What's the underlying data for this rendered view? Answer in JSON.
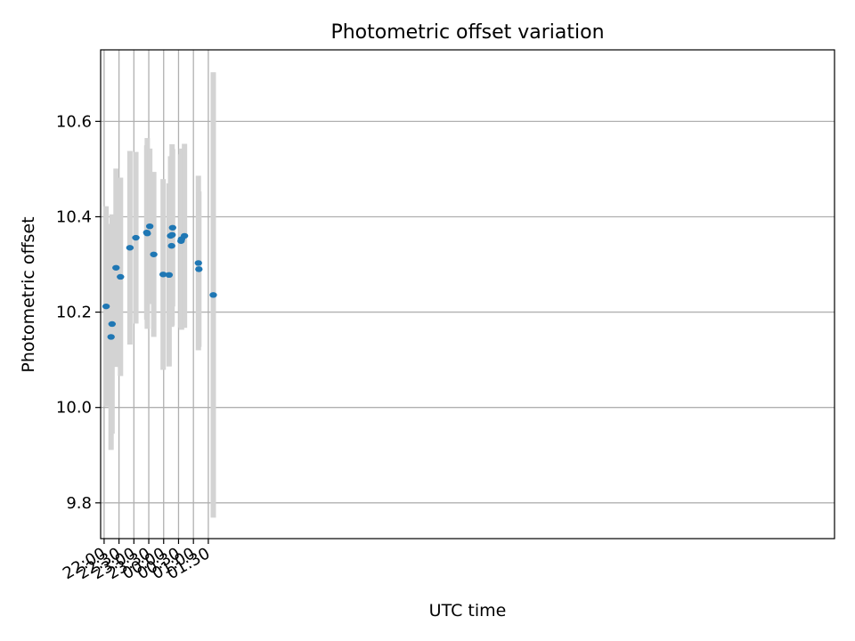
{
  "chart_data": {
    "type": "scatter",
    "title": "Photometric offset variation",
    "xlabel": "UTC time",
    "ylabel": "Photometric offset",
    "grid": true,
    "xlim": [
      "21:53",
      "22:32 +1"
    ],
    "ylim": [
      9.725,
      10.75
    ],
    "xticks": [
      "22:00",
      "22:30",
      "23:00",
      "23:30",
      "00:00",
      "00:30",
      "01:00",
      "01:30"
    ],
    "yticks": [
      "9.8",
      "10.0",
      "10.2",
      "10.4",
      "10.6"
    ],
    "colors": {
      "marker": "#1f77b4",
      "errorbar": "#d3d3d3",
      "grid": "#b0b0b0"
    },
    "points": [
      {
        "t": "22:04",
        "y": 10.212,
        "err": 0.21
      },
      {
        "t": "22:14",
        "y": 10.148,
        "err": 0.237
      },
      {
        "t": "22:16",
        "y": 10.175,
        "err": 0.23
      },
      {
        "t": "22:24",
        "y": 10.293,
        "err": 0.208
      },
      {
        "t": "22:33",
        "y": 10.274,
        "err": 0.208
      },
      {
        "t": "22:52",
        "y": 10.335,
        "err": 0.203
      },
      {
        "t": "23:04",
        "y": 10.356,
        "err": 0.18
      },
      {
        "t": "23:26",
        "y": 10.367,
        "err": 0.183
      },
      {
        "t": "23:27",
        "y": 10.365,
        "err": 0.2
      },
      {
        "t": "23:32",
        "y": 10.38,
        "err": 0.163
      },
      {
        "t": "23:40",
        "y": 10.321,
        "err": 0.173
      },
      {
        "t": "23:59",
        "y": 10.279,
        "err": 0.2
      },
      {
        "t": "00:11",
        "y": 10.278,
        "err": 0.192
      },
      {
        "t": "00:14",
        "y": 10.36,
        "err": 0.167
      },
      {
        "t": "00:16",
        "y": 10.339,
        "err": 0.17
      },
      {
        "t": "00:17",
        "y": 10.362,
        "err": 0.19
      },
      {
        "t": "00:18",
        "y": 10.377,
        "err": 0.165
      },
      {
        "t": "00:35",
        "y": 10.349,
        "err": 0.182
      },
      {
        "t": "00:36",
        "y": 10.353,
        "err": 0.19
      },
      {
        "t": "00:42",
        "y": 10.36,
        "err": 0.193
      },
      {
        "t": "01:10",
        "y": 10.303,
        "err": 0.183
      },
      {
        "t": "01:11",
        "y": 10.29,
        "err": 0.163
      },
      {
        "t": "01:40",
        "y": 10.236,
        "err": 0.467
      }
    ]
  }
}
